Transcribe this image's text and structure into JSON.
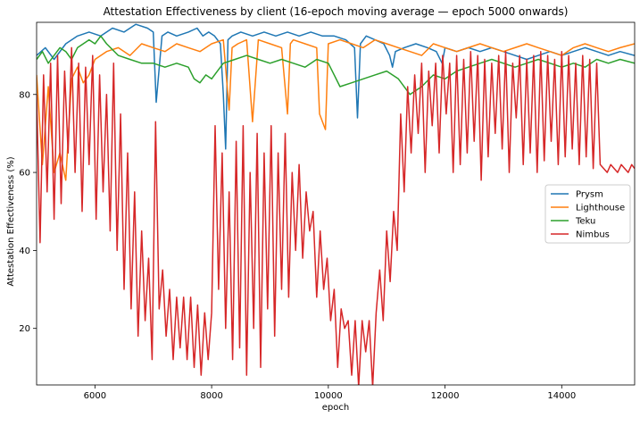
{
  "chart_data": {
    "type": "line",
    "title": "Attestation Effectiveness by client (16-epoch moving average — epoch 5000 onwards)",
    "xlabel": "epoch",
    "ylabel": "Attestation Effectiveness (%)",
    "xlim": [
      5000,
      15250
    ],
    "ylim": [
      5.5,
      98.5
    ],
    "xticks": [
      6000,
      8000,
      10000,
      12000,
      14000
    ],
    "yticks": [
      20,
      40,
      60,
      80
    ],
    "grid": false,
    "legend_position": "center-right",
    "series": [
      {
        "name": "Prysm",
        "color": "#1f77b4",
        "x": [
          5000,
          5150,
          5300,
          5500,
          5700,
          5900,
          6100,
          6300,
          6500,
          6700,
          6900,
          7000,
          7050,
          7150,
          7250,
          7400,
          7600,
          7750,
          7850,
          7950,
          8050,
          8150,
          8200,
          8240,
          8280,
          8350,
          8500,
          8700,
          8900,
          9100,
          9300,
          9500,
          9700,
          9900,
          10100,
          10300,
          10450,
          10500,
          10550,
          10650,
          10800,
          10950,
          11050,
          11100,
          11150,
          11300,
          11500,
          11700,
          11850,
          11950,
          12000,
          12200,
          12400,
          12600,
          12800,
          13000,
          13200,
          13400,
          13600,
          13800,
          14000,
          14200,
          14400,
          14600,
          14800,
          15000,
          15250
        ],
        "y": [
          90,
          92,
          89,
          93,
          95,
          96,
          95,
          97,
          96,
          98,
          97,
          96,
          78,
          95,
          96,
          95,
          96,
          97,
          95,
          96,
          95,
          93,
          80,
          66,
          94,
          95,
          96,
          95,
          96,
          95,
          96,
          95,
          96,
          95,
          95,
          94,
          92,
          74,
          93,
          95,
          94,
          93,
          90,
          87,
          91,
          92,
          93,
          92,
          91,
          88,
          92,
          91,
          92,
          91,
          92,
          91,
          90,
          89,
          90,
          91,
          90,
          91,
          92,
          91,
          90,
          91,
          90
        ]
      },
      {
        "name": "Lighthouse",
        "color": "#ff7f0e",
        "x": [
          5000,
          5100,
          5200,
          5300,
          5400,
          5500,
          5600,
          5700,
          5800,
          5900,
          6000,
          6100,
          6200,
          6400,
          6600,
          6800,
          7000,
          7200,
          7400,
          7600,
          7800,
          8000,
          8200,
          8300,
          8350,
          8450,
          8600,
          8700,
          8800,
          9000,
          9200,
          9300,
          9350,
          9400,
          9600,
          9800,
          9850,
          9950,
          10000,
          10200,
          10400,
          10600,
          10800,
          11000,
          11200,
          11400,
          11600,
          11800,
          12000,
          12200,
          12400,
          12600,
          12800,
          13000,
          13200,
          13400,
          13600,
          13800,
          14000,
          14200,
          14400,
          14600,
          14800,
          15000,
          15250
        ],
        "y": [
          85,
          62,
          82,
          60,
          65,
          58,
          84,
          87,
          83,
          85,
          89,
          90,
          91,
          92,
          90,
          93,
          92,
          91,
          93,
          92,
          91,
          93,
          94,
          76,
          92,
          93,
          94,
          73,
          94,
          93,
          92,
          75,
          93,
          94,
          93,
          92,
          75,
          71,
          93,
          94,
          93,
          92,
          94,
          93,
          92,
          91,
          90,
          93,
          92,
          91,
          92,
          93,
          92,
          91,
          92,
          93,
          92,
          91,
          90,
          92,
          93,
          92,
          91,
          92,
          93
        ]
      },
      {
        "name": "Teku",
        "color": "#2ca02c",
        "x": [
          5000,
          5100,
          5200,
          5300,
          5400,
          5500,
          5600,
          5700,
          5800,
          5900,
          6000,
          6100,
          6200,
          6400,
          6600,
          6800,
          7000,
          7200,
          7400,
          7600,
          7700,
          7800,
          7900,
          8000,
          8100,
          8200,
          8400,
          8600,
          8800,
          9000,
          9200,
          9400,
          9600,
          9800,
          10000,
          10100,
          10200,
          10400,
          10600,
          10800,
          11000,
          11200,
          11400,
          11600,
          11800,
          12000,
          12200,
          12400,
          12600,
          12800,
          13000,
          13200,
          13400,
          13600,
          13800,
          14000,
          14200,
          14400,
          14600,
          14800,
          15000,
          15250
        ],
        "y": [
          89,
          91,
          88,
          90,
          92,
          91,
          89,
          92,
          93,
          94,
          93,
          95,
          93,
          90,
          89,
          88,
          88,
          87,
          88,
          87,
          84,
          83,
          85,
          84,
          86,
          88,
          89,
          90,
          89,
          88,
          89,
          88,
          87,
          89,
          88,
          85,
          82,
          83,
          84,
          85,
          86,
          84,
          80,
          82,
          85,
          84,
          86,
          87,
          88,
          89,
          88,
          87,
          88,
          89,
          88,
          87,
          88,
          87,
          89,
          88,
          89,
          88
        ]
      },
      {
        "name": "Nimbus",
        "color": "#d62728",
        "x": [
          5000,
          5060,
          5120,
          5180,
          5240,
          5300,
          5360,
          5420,
          5480,
          5540,
          5600,
          5660,
          5720,
          5780,
          5840,
          5900,
          5960,
          6020,
          6080,
          6140,
          6200,
          6260,
          6320,
          6380,
          6440,
          6500,
          6560,
          6620,
          6680,
          6740,
          6800,
          6860,
          6920,
          6980,
          7040,
          7100,
          7160,
          7220,
          7280,
          7340,
          7400,
          7460,
          7520,
          7580,
          7640,
          7700,
          7760,
          7820,
          7880,
          7940,
          8000,
          8060,
          8120,
          8180,
          8240,
          8300,
          8360,
          8420,
          8480,
          8540,
          8600,
          8660,
          8720,
          8780,
          8840,
          8900,
          8960,
          9020,
          9080,
          9140,
          9200,
          9260,
          9320,
          9380,
          9440,
          9500,
          9560,
          9620,
          9680,
          9740,
          9800,
          9860,
          9920,
          9980,
          10040,
          10100,
          10160,
          10220,
          10280,
          10340,
          10400,
          10460,
          10520,
          10580,
          10640,
          10700,
          10760,
          10820,
          10880,
          10940,
          11000,
          11060,
          11120,
          11180,
          11240,
          11300,
          11360,
          11420,
          11480,
          11540,
          11600,
          11660,
          11720,
          11780,
          11840,
          11900,
          11960,
          12020,
          12080,
          12140,
          12200,
          12260,
          12320,
          12380,
          12440,
          12500,
          12560,
          12620,
          12680,
          12740,
          12800,
          12860,
          12920,
          12980,
          13040,
          13100,
          13160,
          13220,
          13280,
          13340,
          13400,
          13460,
          13520,
          13580,
          13640,
          13700,
          13760,
          13820,
          13880,
          13940,
          14000,
          14060,
          14120,
          14180,
          14240,
          14300,
          14360,
          14420,
          14480,
          14540,
          14600,
          14660,
          14720,
          14780,
          14840,
          14900,
          14960,
          15020,
          15080,
          15140,
          15200,
          15250
        ],
        "y": [
          80,
          42,
          85,
          55,
          88,
          48,
          90,
          52,
          86,
          65,
          92,
          60,
          88,
          50,
          87,
          62,
          90,
          48,
          85,
          55,
          80,
          45,
          88,
          40,
          75,
          30,
          65,
          25,
          55,
          18,
          45,
          22,
          38,
          12,
          73,
          25,
          35,
          18,
          30,
          12,
          28,
          15,
          28,
          12,
          28,
          10,
          26,
          8,
          24,
          12,
          24,
          72,
          30,
          65,
          20,
          55,
          12,
          68,
          15,
          72,
          8,
          60,
          20,
          70,
          10,
          65,
          25,
          72,
          18,
          65,
          30,
          70,
          28,
          60,
          40,
          62,
          38,
          55,
          45,
          50,
          28,
          45,
          30,
          38,
          22,
          30,
          10,
          25,
          20,
          22,
          8,
          22,
          5,
          22,
          14,
          22,
          5,
          24,
          35,
          22,
          45,
          32,
          50,
          40,
          75,
          55,
          82,
          65,
          85,
          70,
          88,
          60,
          86,
          72,
          88,
          65,
          90,
          75,
          88,
          60,
          90,
          62,
          89,
          65,
          91,
          68,
          90,
          58,
          89,
          64,
          88,
          70,
          90,
          66,
          91,
          60,
          88,
          74,
          90,
          62,
          89,
          65,
          90,
          60,
          91,
          63,
          90,
          68,
          89,
          62,
          91,
          64,
          90,
          66,
          88,
          62,
          90,
          64,
          89,
          61,
          88,
          62,
          61,
          60,
          62,
          61,
          60,
          62,
          61,
          60,
          62,
          61
        ]
      }
    ]
  }
}
